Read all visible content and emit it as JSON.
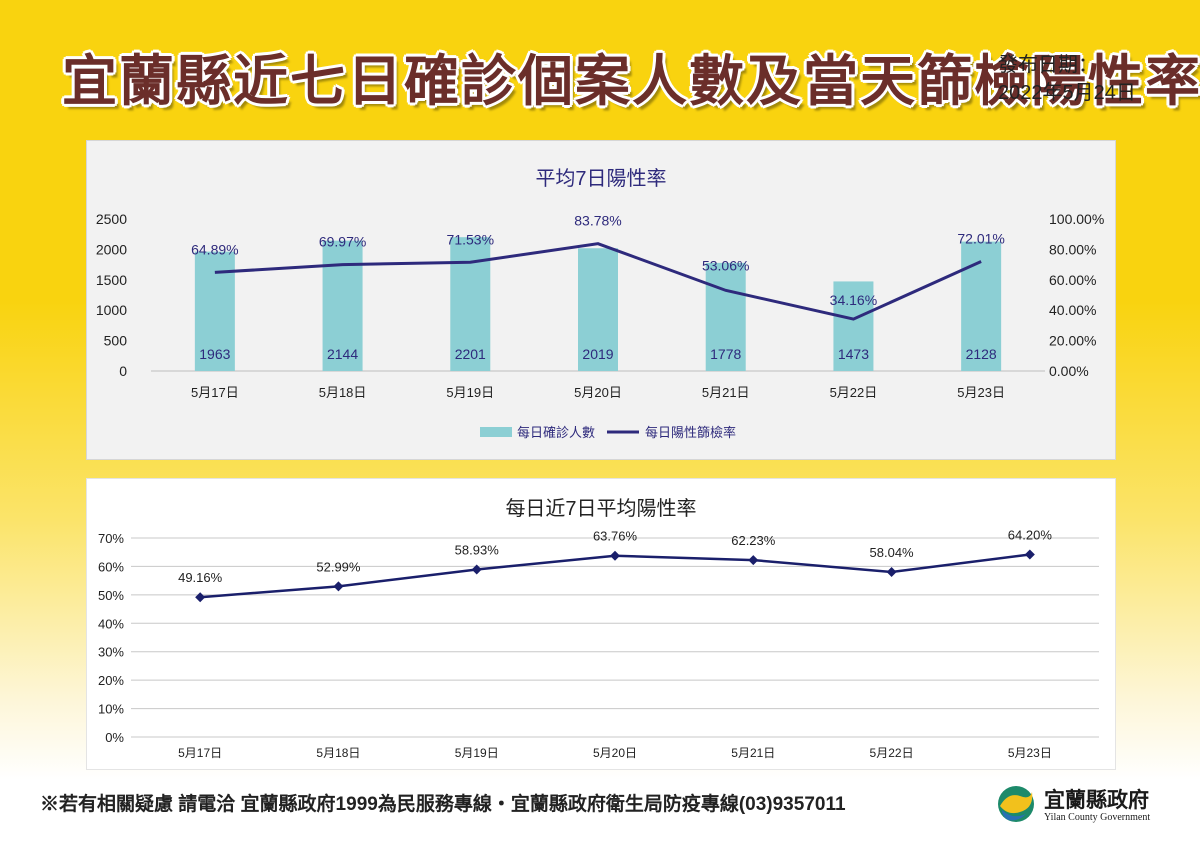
{
  "header": {
    "title": "宜蘭縣近七日確診個案人數及當天篩檢陽性率",
    "publish_label": "發布日期：",
    "publish_date": "2022年5月24日"
  },
  "colors": {
    "background": "#f9d30f",
    "title": "#6b2e2a",
    "bar": "#8ccfd4",
    "line": "#2e2a7c",
    "line2": "#1a1f6b"
  },
  "chart_data": [
    {
      "type": "bar",
      "title": "平均7日陽性率",
      "categories": [
        "5月17日",
        "5月18日",
        "5月19日",
        "5月20日",
        "5月21日",
        "5月22日",
        "5月23日"
      ],
      "series": [
        {
          "name": "每日確診人數",
          "type": "bar",
          "axis": "left",
          "values": [
            1963,
            2144,
            2201,
            2019,
            1778,
            1473,
            2128
          ],
          "labels": [
            "1963",
            "2144",
            "2201",
            "2019",
            "1778",
            "1473",
            "2128"
          ]
        },
        {
          "name": "每日陽性篩檢率",
          "type": "line",
          "axis": "right",
          "values": [
            64.89,
            69.97,
            71.53,
            83.78,
            53.06,
            34.16,
            72.01
          ],
          "labels": [
            "64.89%",
            "69.97%",
            "71.53%",
            "83.78%",
            "53.06%",
            "34.16%",
            "72.01%"
          ]
        }
      ],
      "ylim": [
        0,
        2500
      ],
      "yticks": [
        "2500",
        "2000",
        "1500",
        "1000",
        "500",
        "0"
      ],
      "y2lim": [
        0,
        100
      ],
      "y2ticks": [
        "100.00%",
        "80.00%",
        "60.00%",
        "40.00%",
        "20.00%",
        "0.00%"
      ],
      "legend": "bottom"
    },
    {
      "type": "line",
      "title": "每日近7日平均陽性率",
      "categories": [
        "5月17日",
        "5月18日",
        "5月19日",
        "5月20日",
        "5月21日",
        "5月22日",
        "5月23日"
      ],
      "series": [
        {
          "values": [
            49.16,
            52.99,
            58.93,
            63.76,
            62.23,
            58.04,
            64.2
          ],
          "labels": [
            "49.16%",
            "52.99%",
            "58.93%",
            "63.76%",
            "62.23%",
            "58.04%",
            "64.20%"
          ]
        }
      ],
      "ylim": [
        0,
        70
      ],
      "yticks": [
        "70%",
        "60%",
        "50%",
        "40%",
        "30%",
        "20%",
        "10%",
        "0%"
      ],
      "grid": true
    }
  ],
  "footer": {
    "text": "※若有相關疑慮 請電洽  宜蘭縣政府1999為民服務專線・宜蘭縣政府衛生局防疫專線(03)9357011"
  },
  "logo": {
    "name": "宜蘭縣政府",
    "english": "Yilan County Government"
  }
}
